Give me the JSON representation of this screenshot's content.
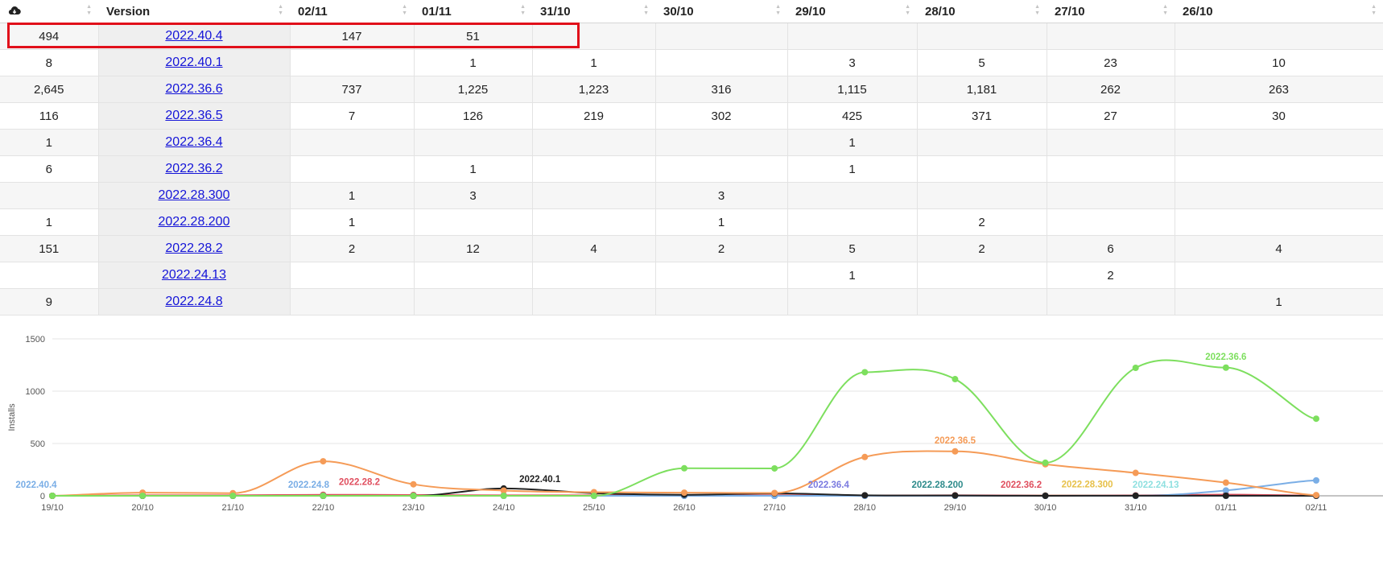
{
  "table": {
    "headers": [
      {
        "label": "",
        "icon": "cloud-download-icon"
      },
      {
        "label": "Version"
      },
      {
        "label": "02/11"
      },
      {
        "label": "01/11"
      },
      {
        "label": "31/10"
      },
      {
        "label": "30/10"
      },
      {
        "label": "29/10"
      },
      {
        "label": "28/10"
      },
      {
        "label": "27/10"
      },
      {
        "label": "26/10"
      }
    ],
    "rows": [
      {
        "total": "494",
        "version": "2022.40.4",
        "cells": [
          "147",
          "51",
          "",
          "",
          "",
          "",
          "",
          ""
        ]
      },
      {
        "total": "8",
        "version": "2022.40.1",
        "cells": [
          "",
          "1",
          "1",
          "",
          "3",
          "5",
          "23",
          "10"
        ]
      },
      {
        "total": "2,645",
        "version": "2022.36.6",
        "cells": [
          "737",
          "1,225",
          "1,223",
          "316",
          "1,115",
          "1,181",
          "262",
          "263"
        ]
      },
      {
        "total": "116",
        "version": "2022.36.5",
        "cells": [
          "7",
          "126",
          "219",
          "302",
          "425",
          "371",
          "27",
          "30"
        ]
      },
      {
        "total": "1",
        "version": "2022.36.4",
        "cells": [
          "",
          "",
          "",
          "",
          "1",
          "",
          "",
          ""
        ]
      },
      {
        "total": "6",
        "version": "2022.36.2",
        "cells": [
          "",
          "1",
          "",
          "",
          "1",
          "",
          "",
          ""
        ]
      },
      {
        "total": "",
        "version": "2022.28.300",
        "cells": [
          "1",
          "3",
          "",
          "3",
          "",
          "",
          "",
          ""
        ]
      },
      {
        "total": "1",
        "version": "2022.28.200",
        "cells": [
          "1",
          "",
          "",
          "1",
          "",
          "2",
          "",
          ""
        ]
      },
      {
        "total": "151",
        "version": "2022.28.2",
        "cells": [
          "2",
          "12",
          "4",
          "2",
          "5",
          "2",
          "6",
          "4"
        ]
      },
      {
        "total": "",
        "version": "2022.24.13",
        "cells": [
          "",
          "",
          "",
          "",
          "1",
          "",
          "2",
          ""
        ]
      },
      {
        "total": "9",
        "version": "2022.24.8",
        "cells": [
          "",
          "",
          "",
          "",
          "",
          "",
          "",
          "1"
        ]
      }
    ]
  },
  "chart_data": {
    "type": "line",
    "ylabel": "Installs",
    "ylim": [
      0,
      1500
    ],
    "yticks": [
      "0",
      "500",
      "1000",
      "1500"
    ],
    "x": [
      "19/10",
      "20/10",
      "21/10",
      "22/10",
      "23/10",
      "24/10",
      "25/10",
      "26/10",
      "27/10",
      "28/10",
      "29/10",
      "30/10",
      "31/10",
      "01/11",
      "02/11"
    ],
    "grid": true,
    "series": [
      {
        "name": "2022.36.6",
        "color": "#7ddf5e",
        "label_at": 13,
        "values": [
          0,
          0,
          0,
          0,
          0,
          0,
          0,
          263,
          262,
          1181,
          1115,
          316,
          1223,
          1225,
          737
        ]
      },
      {
        "name": "2022.36.5",
        "color": "#f59b57",
        "label_at": 10,
        "values": [
          0,
          30,
          25,
          330,
          110,
          50,
          35,
          30,
          27,
          371,
          425,
          302,
          219,
          126,
          7
        ]
      },
      {
        "name": "2022.40.1",
        "color": "#222222",
        "label_at": 5,
        "values": [
          0,
          0,
          0,
          0,
          0,
          70,
          25,
          10,
          23,
          5,
          3,
          0,
          1,
          1,
          0
        ]
      },
      {
        "name": "2022.40.4",
        "color": "#7aaee6",
        "label_at": 0,
        "values": [
          0,
          0,
          0,
          0,
          0,
          0,
          0,
          0,
          0,
          0,
          0,
          0,
          0,
          51,
          147
        ]
      },
      {
        "name": "2022.24.8",
        "color": "#7aaee6",
        "label_at": 3,
        "values": [
          0,
          0,
          0,
          0,
          0,
          0,
          0,
          1,
          0,
          0,
          0,
          0,
          0,
          0,
          0
        ]
      },
      {
        "name": "2022.28.2",
        "color": "#e04f5f",
        "label_at": 3,
        "values": [
          0,
          5,
          5,
          10,
          8,
          5,
          5,
          4,
          6,
          2,
          5,
          2,
          4,
          12,
          2
        ]
      },
      {
        "name": "2022.36.4",
        "color": "#7b7be0",
        "label_at": 9,
        "values": [
          0,
          0,
          0,
          0,
          0,
          0,
          0,
          0,
          0,
          0,
          1,
          0,
          0,
          0,
          0
        ]
      },
      {
        "name": "2022.28.200",
        "color": "#2e8b8b",
        "label_at": 10,
        "values": [
          0,
          0,
          0,
          0,
          0,
          0,
          0,
          0,
          0,
          2,
          0,
          1,
          0,
          0,
          1
        ]
      },
      {
        "name": "2022.36.2",
        "color": "#e04f5f",
        "label_at": 11,
        "values": [
          0,
          0,
          0,
          0,
          0,
          0,
          0,
          0,
          0,
          0,
          1,
          0,
          0,
          1,
          0
        ]
      },
      {
        "name": "2022.28.300",
        "color": "#e7c14a",
        "label_at": 11,
        "values": [
          0,
          0,
          0,
          0,
          0,
          0,
          0,
          0,
          0,
          0,
          0,
          3,
          0,
          3,
          1
        ]
      },
      {
        "name": "2022.24.13",
        "color": "#8fe0e0",
        "label_at": 12,
        "values": [
          0,
          0,
          0,
          0,
          0,
          0,
          0,
          0,
          2,
          0,
          1,
          0,
          0,
          0,
          0
        ]
      }
    ]
  }
}
